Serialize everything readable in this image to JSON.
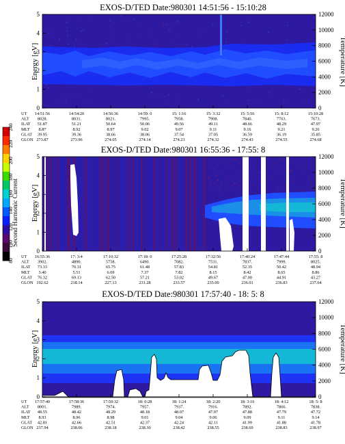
{
  "figure": {
    "colorbar": {
      "label": "Second Harmonic Current",
      "ticks": [
        "240",
        "220",
        "200",
        "180",
        "160",
        "140",
        "120",
        "100",
        "80"
      ],
      "colors": [
        "#d40000",
        "#ff2a00",
        "#ff7a00",
        "#ffd200",
        "#c8ff00",
        "#3cdc00",
        "#00c864",
        "#00d2d2",
        "#00a8ff",
        "#005aff",
        "#0a1eff",
        "#2c0fa0",
        "#5a0a6e",
        "#3a0a3a",
        "#000000"
      ]
    },
    "panels": [
      {
        "title": "EXOS-D/TED   Date:980301  14:51:56 - 15:10:28",
        "ylabel": "Energy [eV]",
        "ylabel2": "Temperature [K]",
        "yticks": [
          "0",
          "1",
          "2",
          "3",
          "4",
          "5"
        ],
        "y2ticks": [
          "0",
          "2000",
          "4000",
          "6000",
          "8000",
          "10000",
          "12000"
        ],
        "row_labels": [
          "UT",
          "ALT",
          "ILAT",
          "MLT",
          "GLAT",
          "GLON"
        ],
        "cols": [
          [
            "14:51:56",
            "8028.",
            "51.87",
            "8.87",
            "39.95",
            "273.87"
          ],
          [
            "14:54:20",
            "8031.",
            "51.21",
            "8.92",
            "39.36",
            "273.96"
          ],
          [
            "14:56:36",
            "8021.",
            "50.64",
            "8.97",
            "38.66",
            "274.05"
          ],
          [
            "14:59: 0",
            "7995.",
            "50.06",
            "9.02",
            "38.06",
            "274.14"
          ],
          [
            "15: 1:16",
            "7958.",
            "49.56",
            "9.07",
            "37.54",
            "274.23"
          ],
          [
            "15: 3:32",
            "7908.",
            "49.11",
            "9.11",
            "37.05",
            "274.32"
          ],
          [
            "15: 5:56",
            "7840.",
            "48.66",
            "9.16",
            "36.59",
            "274.43"
          ],
          [
            "15: 8:12",
            "7763.",
            "48.29",
            "9.21",
            "36.19",
            "274.55"
          ],
          [
            "15:10:28",
            "7673.",
            "47.97",
            "9.26",
            "35.85",
            "274.68"
          ]
        ]
      },
      {
        "title": "EXOS-D/TED   Date:980301  16:55:36 - 17:55: 8",
        "ylabel": "Energy [eV]",
        "ylabel2": "Temperature [K]",
        "yticks": [
          "0",
          "1",
          "2",
          "3",
          "4",
          "5"
        ],
        "y2ticks": [
          "0",
          "2000",
          "4000",
          "6000",
          "8000",
          "10000",
          "12000"
        ],
        "row_labels": [
          "UT",
          "ALT",
          "ILAT",
          "MLT",
          "GLAT",
          "GLON"
        ],
        "cols": [
          [
            "16:55:36",
            "3902.",
            "73.33",
            "3.40",
            "76.32",
            "192.62"
          ],
          [
            "17: 3:4",
            "4890.",
            "70.31",
            "5.51",
            "69.13",
            "218.14"
          ],
          [
            "17:10:32",
            "5758.",
            "65.75",
            "6.69",
            "62.50",
            "227.13"
          ],
          [
            "17:18: 0",
            "6490.",
            "61.48",
            "7.37",
            "57.21",
            "231.28"
          ],
          [
            "17:25:28",
            "7082.",
            "57.83",
            "7.82",
            "53.02",
            "233.57"
          ],
          [
            "17:32:56",
            "7531.",
            "54.81",
            "8.15",
            "49.67",
            "235.00"
          ],
          [
            "17:40:24",
            "7837.",
            "52.35",
            "8.42",
            "47.00",
            "236.01"
          ],
          [
            "17:47:44",
            "7999.",
            "50.42",
            "8.65",
            "44.91",
            "236.83"
          ],
          [
            "17:55: 8",
            "8025.",
            "48.94",
            "8.86",
            "43.27",
            "237.64"
          ]
        ]
      },
      {
        "title": "EXOS-D/TED   Date:980301  17:57:40 - 18: 5: 8",
        "ylabel": "Energy [eV]",
        "ylabel2": "Temperature [K]",
        "yticks": [
          "0",
          "1",
          "2",
          "3",
          "4",
          "5"
        ],
        "y2ticks": [
          "0",
          "2000",
          "4000",
          "6000",
          "8000",
          "10000",
          "12000"
        ],
        "row_labels": [
          "UT",
          "ALT",
          "ILAT",
          "MLT",
          "GLAT",
          "GLON"
        ],
        "cols": [
          [
            "17:57:40",
            "8001.",
            "48.55",
            "8.93",
            "42.81",
            "237.94"
          ],
          [
            "17:58:36",
            "7989.",
            "48.42",
            "8.96",
            "42.66",
            "238.06"
          ],
          [
            "17:59:32",
            "7974.",
            "48.29",
            "8.98",
            "42.51",
            "238.18"
          ],
          [
            "18: 0:28",
            "7957.",
            "48.18",
            "9.01",
            "42.37",
            "238.30"
          ],
          [
            "18: 1:24",
            "7937.",
            "48.07",
            "9.04",
            "42.24",
            "238.42"
          ],
          [
            "18: 2:20",
            "7916.",
            "47.97",
            "9.06",
            "42.11",
            "238.55"
          ],
          [
            "18: 3:16",
            "7892.",
            "47.88",
            "9.09",
            "41.99",
            "238.69"
          ],
          [
            "18: 4:12",
            "7866.",
            "47.79",
            "9.11",
            "41.88",
            "238.83"
          ],
          [
            "18: 5: 8",
            "7838.",
            "47.72",
            "9.14",
            "41.78",
            "238.97"
          ]
        ]
      }
    ]
  },
  "chart_data": [
    {
      "type": "heatmap",
      "title": "EXOS-D/TED   Date:980301  14:51:56 - 15:10:28",
      "xlabel": "UT",
      "ylabel": "Energy [eV]",
      "ylabel2": "Temperature [K]",
      "ylim": [
        0,
        5
      ],
      "y2lim": [
        0,
        12000
      ],
      "x": [
        "14:51:56",
        "14:54:20",
        "14:56:36",
        "14:59: 0",
        "15: 1:16",
        "15: 3:32",
        "15: 5:56",
        "15: 8:12",
        "15:10:28"
      ],
      "bands": [
        {
          "level": "low",
          "energy_range": [
            1.4,
            3.3
          ]
        },
        {
          "level": "medium",
          "energy_range": [
            1.8,
            2.9
          ]
        }
      ]
    },
    {
      "type": "heatmap",
      "title": "EXOS-D/TED   Date:980301  16:55:36 - 17:55: 8",
      "xlabel": "UT",
      "ylabel": "Energy [eV]",
      "ylabel2": "Temperature [K]",
      "ylim": [
        0,
        5
      ],
      "y2lim": [
        0,
        12000
      ],
      "x": [
        "16:55:36",
        "17: 3:4",
        "17:10:32",
        "17:18: 0",
        "17:25:28",
        "17:32:56",
        "17:40:24",
        "17:47:44",
        "17:55: 8"
      ],
      "bands": [
        {
          "level": "medium",
          "energy_range": [
            1.7,
            3.2
          ]
        },
        {
          "level": "high",
          "energy_range": [
            2.0,
            2.8
          ]
        }
      ]
    },
    {
      "type": "heatmap",
      "title": "EXOS-D/TED   Date:980301  17:57:40 - 18: 5: 8",
      "xlabel": "UT",
      "ylabel": "Energy [eV]",
      "ylabel2": "Temperature [K]",
      "ylim": [
        0,
        5
      ],
      "y2lim": [
        0,
        12000
      ],
      "x": [
        "17:57:40",
        "17:58:36",
        "17:59:32",
        "18: 0:28",
        "18: 1:24",
        "18: 2:20",
        "18: 3:16",
        "18: 4:12",
        "18: 5: 8"
      ],
      "bands": [
        {
          "level": "low",
          "energy_range": [
            0,
            5
          ]
        },
        {
          "level": "medium",
          "energy_range": [
            1.2,
            2.8
          ]
        },
        {
          "level": "high",
          "energy_range": [
            1.6,
            2.6
          ]
        }
      ]
    }
  ]
}
